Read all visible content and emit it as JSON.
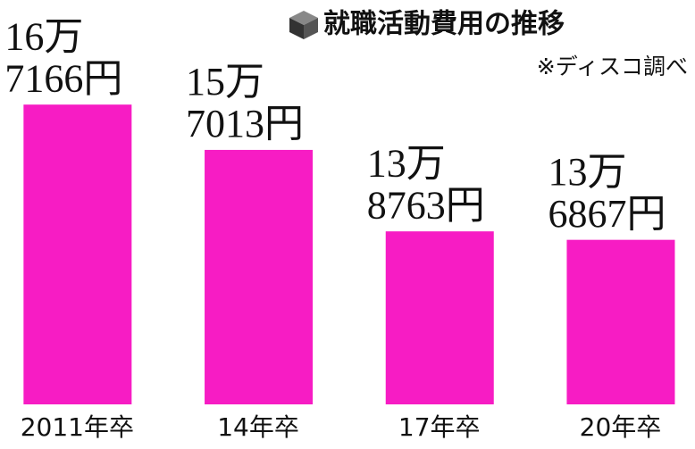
{
  "chart_data": {
    "type": "bar",
    "title": "就職活動費用の推移",
    "subtitle": "※ディスコ調べ",
    "categories": [
      "2011年卒",
      "14年卒",
      "17年卒",
      "20年卒"
    ],
    "values": [
      167166,
      157013,
      138763,
      136867
    ],
    "value_labels": [
      [
        "16万",
        "7166円"
      ],
      [
        "15万",
        "7013円"
      ],
      [
        "13万",
        "8763円"
      ],
      [
        "13万",
        "6867円"
      ]
    ],
    "color": "#f71cc4",
    "ylim": [
      100000,
      170000
    ]
  }
}
